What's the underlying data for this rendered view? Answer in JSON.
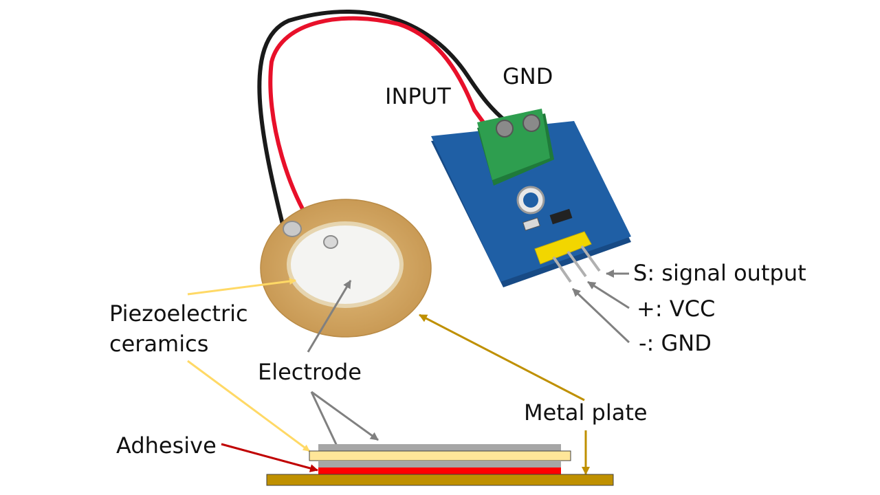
{
  "labels": {
    "input": "INPUT",
    "gnd_top": "GND",
    "signal_output": "S: signal output",
    "vcc": "+: VCC",
    "gnd_pin": "-: GND",
    "piezo_line1": "Piezoelectric",
    "piezo_line2": "ceramics",
    "electrode": "Electrode",
    "metal_plate": "Metal plate",
    "adhesive": "Adhesive"
  },
  "colors": {
    "piezo_arrow": "#ffd966",
    "electrode_arrow": "#808080",
    "metal_plate_arrow": "#bf9000",
    "adhesive_arrow": "#c00000",
    "pcb_blue": "#1f5fa5",
    "terminal_green": "#2e9e4f",
    "pin_header_yellow": "#f2d600",
    "brass_disc": "#d4a865",
    "ceramic_white": "#f4f4f2",
    "layer_electrode": "#a6a6a6",
    "layer_ceramic": "#ffe699",
    "layer_adhesive": "#ff0000",
    "layer_metal_plate": "#bf9000",
    "wire_red": "#e8102a",
    "wire_black": "#1a1a1a"
  }
}
